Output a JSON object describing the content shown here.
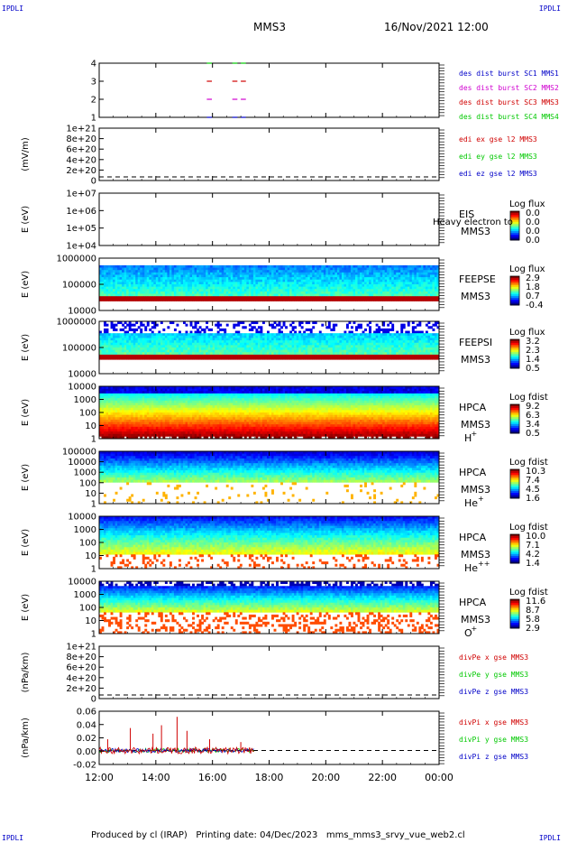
{
  "corners": {
    "top_left": "IPDLI",
    "top_right": "IPDLI",
    "bottom_left": "IPDLI",
    "bottom_right": "IPDLI"
  },
  "header": {
    "spacecraft": "MMS3",
    "datetime": "16/Nov/2021 12:00"
  },
  "footer": {
    "produced_by": "Produced by cl (IRAP)",
    "printing_date": "Printing date: 04/Dec/2023",
    "filename": "mms_mms3_srvy_vue_web2.cl"
  },
  "colors": {
    "red": "#d00000",
    "green": "#00c800",
    "blue": "#0000c8",
    "magenta": "#d000d0",
    "axis": "#000000"
  },
  "chart_data": [
    {
      "id": "burst",
      "type": "line",
      "ylabel": "",
      "yticks": [
        "1",
        "2",
        "3",
        "4"
      ],
      "legend": [
        {
          "text": "des dist burst SC1 MMS1",
          "color": "#0000c8"
        },
        {
          "text": "des dist burst SC2 MMS2",
          "color": "#d000d0"
        },
        {
          "text": "des dist burst SC3 MMS3",
          "color": "#d00000"
        },
        {
          "text": "des dist burst SC4 MMS4",
          "color": "#00c800"
        }
      ],
      "series": [
        {
          "level": 4,
          "color": "#00c800",
          "intervals": [
            [
              15.8,
              16.0
            ],
            [
              16.7,
              17.2
            ]
          ]
        },
        {
          "level": 3,
          "color": "#d00000",
          "intervals": [
            [
              15.8,
              16.0
            ],
            [
              16.7,
              17.2
            ]
          ]
        },
        {
          "level": 2,
          "color": "#d000d0",
          "intervals": [
            [
              15.8,
              16.0
            ],
            [
              16.7,
              17.2
            ]
          ]
        },
        {
          "level": 1,
          "color": "#0000c8",
          "intervals": [
            [
              15.8,
              16.0
            ],
            [
              16.7,
              17.2
            ]
          ]
        }
      ]
    },
    {
      "id": "edi",
      "type": "line",
      "ylabel": "(mV/m)",
      "yticks": [
        "0",
        "2e+20",
        "4e+20",
        "6e+20",
        "8e+20",
        "1e+21"
      ],
      "legend": [
        {
          "text": "edi ex gse l2 MMS3",
          "color": "#d00000"
        },
        {
          "text": "edi ey gse l2 MMS3",
          "color": "#00c800"
        },
        {
          "text": "edi ez gse l2 MMS3",
          "color": "#0000c8"
        }
      ],
      "zero_line": true
    },
    {
      "id": "eis",
      "type": "heatmap",
      "ylabel": "E (eV)",
      "yticks": [
        "1e+04",
        "1e+05",
        "1e+06",
        "1e+07"
      ],
      "instrument": "EIS",
      "spacecraft": "MMS3",
      "overlay_text": "Heavy electron to",
      "colorbar": {
        "title": "Log flux",
        "ticks": [
          "0.0",
          "0.0",
          "0.0",
          "0.0"
        ]
      }
    },
    {
      "id": "feepse",
      "type": "heatmap",
      "ylabel": "E (eV)",
      "yticks": [
        "10000",
        "100000",
        "1000000"
      ],
      "instrument": "FEEPSE",
      "spacecraft": "MMS3",
      "colorbar": {
        "title": "Log flux",
        "ticks": [
          "2.9",
          "1.8",
          "0.7",
          "-0.4"
        ]
      }
    },
    {
      "id": "feepsi",
      "type": "heatmap",
      "ylabel": "E (eV)",
      "yticks": [
        "10000",
        "100000",
        "1000000"
      ],
      "instrument": "FEEPSI",
      "spacecraft": "MMS3",
      "colorbar": {
        "title": "Log flux",
        "ticks": [
          "3.2",
          "2.3",
          "1.4",
          "0.5"
        ]
      }
    },
    {
      "id": "hpca_h",
      "type": "heatmap",
      "ylabel": "E (eV)",
      "yticks": [
        "1",
        "10",
        "100",
        "1000",
        "10000"
      ],
      "instrument": "HPCA",
      "spacecraft": "MMS3",
      "species": "H",
      "charge": "+",
      "colorbar": {
        "title": "Log fdist",
        "ticks": [
          "9.2",
          "6.3",
          "3.4",
          "0.5"
        ]
      }
    },
    {
      "id": "hpca_he",
      "type": "heatmap",
      "ylabel": "E (eV)",
      "yticks": [
        "1",
        "10",
        "100",
        "1000",
        "10000",
        "100000"
      ],
      "instrument": "HPCA",
      "spacecraft": "MMS3",
      "species": "He",
      "charge": "+",
      "colorbar": {
        "title": "Log fdist",
        "ticks": [
          "10.3",
          "7.4",
          "4.5",
          "1.6"
        ]
      }
    },
    {
      "id": "hpca_hepp",
      "type": "heatmap",
      "ylabel": "E (eV)",
      "yticks": [
        "1",
        "10",
        "100",
        "1000",
        "10000"
      ],
      "instrument": "HPCA",
      "spacecraft": "MMS3",
      "species": "He",
      "charge": "++",
      "colorbar": {
        "title": "Log fdist",
        "ticks": [
          "10.0",
          "7.1",
          "4.2",
          "1.4"
        ]
      }
    },
    {
      "id": "hpca_o",
      "type": "heatmap",
      "ylabel": "E (eV)",
      "yticks": [
        "1",
        "10",
        "100",
        "1000",
        "10000"
      ],
      "instrument": "HPCA",
      "spacecraft": "MMS3",
      "species": "O",
      "charge": "+",
      "colorbar": {
        "title": "Log fdist",
        "ticks": [
          "11.6",
          "8.7",
          "5.8",
          "2.9"
        ]
      }
    },
    {
      "id": "divpe",
      "type": "line",
      "ylabel": "(nPa/km)",
      "yticks": [
        "0",
        "2e+20",
        "4e+20",
        "6e+20",
        "8e+20",
        "1e+21"
      ],
      "legend": [
        {
          "text": "divPe x gse MMS3",
          "color": "#d00000"
        },
        {
          "text": "divPe y gse MMS3",
          "color": "#00c800"
        },
        {
          "text": "divPe z gse MMS3",
          "color": "#0000c8"
        }
      ],
      "zero_line": true
    },
    {
      "id": "divpi",
      "type": "line",
      "ylabel": "(nPa/km)",
      "yticks": [
        "-0.02",
        "0.00",
        "0.02",
        "0.04",
        "0.06"
      ],
      "ylim": [
        -0.025,
        0.07
      ],
      "legend": [
        {
          "text": "divPi x gse MMS3",
          "color": "#d00000"
        },
        {
          "text": "divPi y gse MMS3",
          "color": "#00c800"
        },
        {
          "text": "divPi z gse MMS3",
          "color": "#0000c8"
        }
      ],
      "zero_line": true,
      "data_end_hour": 17.5,
      "spikes": [
        {
          "hour": 12.3,
          "value": 0.02
        },
        {
          "hour": 13.1,
          "value": 0.04
        },
        {
          "hour": 13.9,
          "value": 0.03
        },
        {
          "hour": 14.2,
          "value": 0.045
        },
        {
          "hour": 14.75,
          "value": 0.06
        },
        {
          "hour": 15.1,
          "value": 0.035
        },
        {
          "hour": 15.9,
          "value": 0.02
        },
        {
          "hour": 17.0,
          "value": 0.015
        }
      ]
    }
  ],
  "time_axis": {
    "ticks": [
      "12:00",
      "14:00",
      "16:00",
      "18:00",
      "20:00",
      "22:00",
      "00:00"
    ],
    "range_hours": [
      12,
      24
    ]
  }
}
